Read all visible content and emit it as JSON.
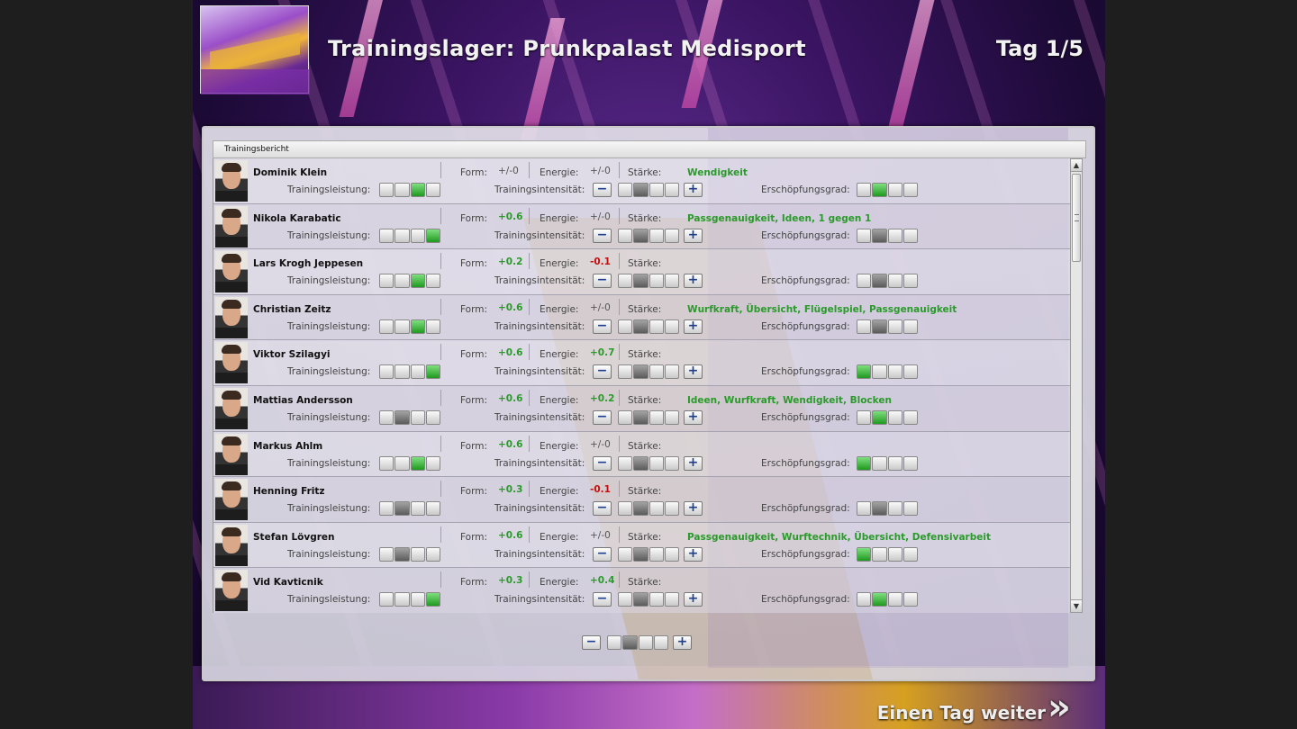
{
  "header": {
    "title": "Trainingslager: Prunkpalast Medisport",
    "day": "Tag 1/5"
  },
  "panel": {
    "heading": "Trainingsbericht"
  },
  "labels": {
    "form": "Form:",
    "energy": "Energie:",
    "strength": "Stärke:",
    "training_perf": "Trainingsleistung:",
    "intensity": "Trainingsintensität:",
    "exhaustion": "Erschöpfungsgrad:"
  },
  "colors": {
    "positive": "#2a9a2a",
    "negative": "#c01010",
    "accent_button": "#1b3f8e"
  },
  "players": [
    {
      "name": "Dominik Klein",
      "form": "+/-0",
      "form_kind": "neu",
      "energy": "+/-0",
      "energy_kind": "neu",
      "skills": "Wendigkeit",
      "perf": [
        0,
        0,
        0,
        0
      ],
      "perf_on": 3,
      "intensity": 0,
      "exhaustion_on": 2
    },
    {
      "name": "Nikola Karabatic",
      "form": "+0.6",
      "form_kind": "pos",
      "energy": "+/-0",
      "energy_kind": "neu",
      "skills": "Passgenauigkeit, Ideen, 1 gegen 1",
      "perf_on": 4,
      "intensity": 0,
      "exhaustion_on": 0
    },
    {
      "name": "Lars Krogh Jeppesen",
      "form": "+0.2",
      "form_kind": "pos",
      "energy": "-0.1",
      "energy_kind": "neg",
      "skills": "",
      "perf_on": 3,
      "intensity": 0,
      "exhaustion_on": 0
    },
    {
      "name": "Christian Zeitz",
      "form": "+0.6",
      "form_kind": "pos",
      "energy": "+/-0",
      "energy_kind": "neu",
      "skills": "Wurfkraft, Übersicht, Flügelspiel, Passgenauigkeit",
      "perf_on": 3,
      "intensity": 0,
      "exhaustion_on": 0
    },
    {
      "name": "Viktor Szilagyi",
      "form": "+0.6",
      "form_kind": "pos",
      "energy": "+0.7",
      "energy_kind": "pos",
      "skills": "",
      "perf_on": 4,
      "intensity": 0,
      "exhaustion_on": 1
    },
    {
      "name": "Mattias Andersson",
      "form": "+0.6",
      "form_kind": "pos",
      "energy": "+0.2",
      "energy_kind": "pos",
      "skills": "Ideen, Wurfkraft, Wendigkeit, Blocken",
      "perf_on": 0,
      "intensity": 0,
      "exhaustion_on": 2
    },
    {
      "name": "Markus Ahlm",
      "form": "+0.6",
      "form_kind": "pos",
      "energy": "+/-0",
      "energy_kind": "neu",
      "skills": "",
      "perf_on": 3,
      "intensity": 0,
      "exhaustion_on": 1
    },
    {
      "name": "Henning Fritz",
      "form": "+0.3",
      "form_kind": "pos",
      "energy": "-0.1",
      "energy_kind": "neg",
      "skills": "",
      "perf_on": 0,
      "intensity": 0,
      "exhaustion_on": 0
    },
    {
      "name": "Stefan Lövgren",
      "form": "+0.6",
      "form_kind": "pos",
      "energy": "+/-0",
      "energy_kind": "neu",
      "skills": "Passgenauigkeit, Wurftechnik, Übersicht, Defensivarbeit",
      "perf_on": 0,
      "intensity": 0,
      "exhaustion_on": 1
    },
    {
      "name": "Vid Kavticnik",
      "form": "+0.3",
      "form_kind": "pos",
      "energy": "+0.4",
      "energy_kind": "pos",
      "skills": "",
      "perf_on": 4,
      "intensity": 0,
      "exhaustion_on": 2
    }
  ],
  "footer": {
    "next_day": "Einen Tag weiter",
    "next_icon": "double-chevron-right-icon"
  }
}
